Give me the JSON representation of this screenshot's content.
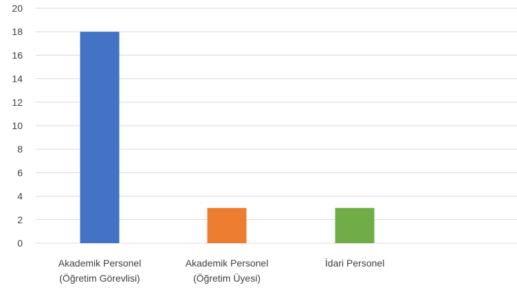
{
  "chart_data": {
    "type": "bar",
    "title": "",
    "xlabel": "",
    "ylabel": "",
    "ylim": [
      0,
      20
    ],
    "yticks": [
      0,
      2,
      4,
      6,
      8,
      10,
      12,
      14,
      16,
      18,
      20
    ],
    "grid": true,
    "legend": "none",
    "categories": [
      [
        "Akademik Personel",
        "(Öğretim Görevlisi)"
      ],
      [
        "Akademik Personel",
        "(Öğretim Üyesi)"
      ],
      [
        "İdari Personel"
      ]
    ],
    "values": [
      18,
      3,
      3
    ],
    "colors": [
      "#4472c4",
      "#ed7d31",
      "#70ad47"
    ]
  }
}
